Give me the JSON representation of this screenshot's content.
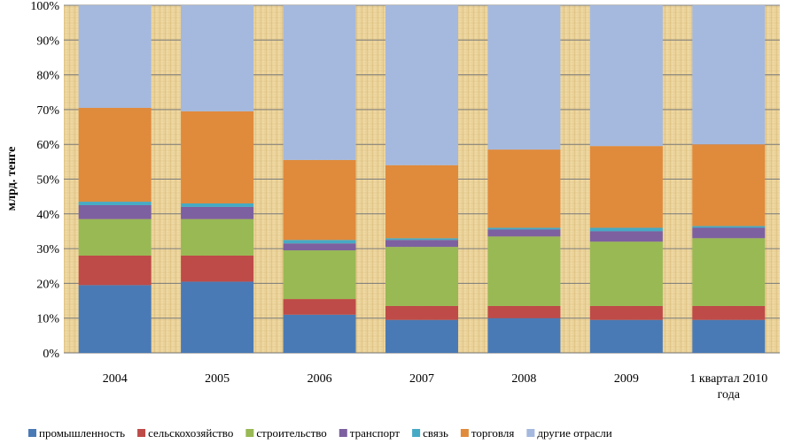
{
  "chart_data": {
    "type": "bar",
    "stacked": true,
    "percent": true,
    "ylabel": "млрд. тенге",
    "ylim": [
      0,
      100
    ],
    "yticks": [
      "0%",
      "10%",
      "20%",
      "30%",
      "40%",
      "50%",
      "60%",
      "70%",
      "80%",
      "90%",
      "100%"
    ],
    "categories": [
      [
        "2004"
      ],
      [
        "2005"
      ],
      [
        "2006"
      ],
      [
        "2007"
      ],
      [
        "2008"
      ],
      [
        "2009"
      ],
      [
        "1 квартал 2010",
        "года"
      ]
    ],
    "series": [
      {
        "name": "промышленность",
        "color": "#4a7ab5",
        "values": [
          19.5,
          20.5,
          11.0,
          9.5,
          10.0,
          9.5,
          9.5
        ]
      },
      {
        "name": "сельскохозяйство",
        "color": "#be4b48",
        "values": [
          8.5,
          7.5,
          4.5,
          4.0,
          3.5,
          4.0,
          4.0
        ]
      },
      {
        "name": "строительство",
        "color": "#98b954",
        "values": [
          10.5,
          10.5,
          14.0,
          17.0,
          20.0,
          18.5,
          19.5
        ]
      },
      {
        "name": "транспорт",
        "color": "#7d60a0",
        "values": [
          4.0,
          3.5,
          2.0,
          2.0,
          2.0,
          3.0,
          3.0
        ]
      },
      {
        "name": "связь",
        "color": "#46aac5",
        "values": [
          1.0,
          1.0,
          1.0,
          0.5,
          0.5,
          1.0,
          0.5
        ]
      },
      {
        "name": "торговля",
        "color": "#e08a3c",
        "values": [
          27.0,
          26.5,
          23.0,
          21.0,
          22.5,
          23.5,
          23.5
        ]
      },
      {
        "name": "другие отрасли",
        "color": "#a5b9de",
        "values": [
          29.5,
          30.5,
          44.5,
          46.0,
          41.5,
          40.5,
          40.0
        ]
      }
    ],
    "grid": true,
    "legend": "bottom"
  }
}
